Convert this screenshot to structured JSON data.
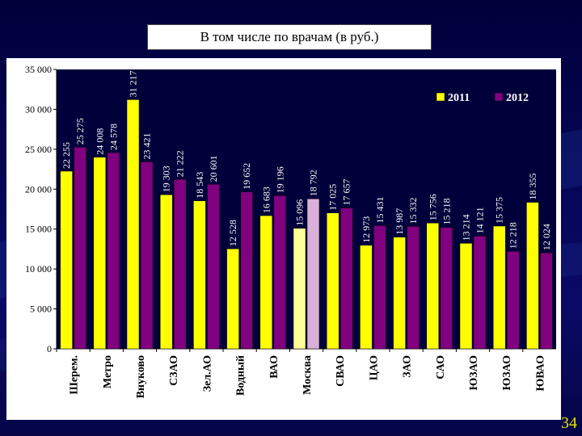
{
  "slide": {
    "title": "В том числе по врачам (в руб.)",
    "page_number": "34"
  },
  "colors": {
    "series_2011": "#ffff00",
    "series_2012": "#800080",
    "moscow_2011": "#ffff99",
    "moscow_2012": "#d8b0d8"
  },
  "chart_data": {
    "type": "bar",
    "categories": [
      "Шерем.",
      "Метро",
      "Внуково",
      "СЗАО",
      "Зел.АО",
      "Водный",
      "ВАО",
      "Москва",
      "СВАО",
      "ЦАО",
      "ЗАО",
      "САО",
      "ЮЗАО",
      "ЮЗАО",
      "ЮВАО"
    ],
    "series": [
      {
        "name": "2011",
        "values": [
          22255,
          24008,
          31217,
          19303,
          18543,
          12528,
          16683,
          15096,
          17025,
          12973,
          13987,
          15756,
          13214,
          15375,
          18355
        ],
        "labels": [
          "22 255",
          "24 008",
          "31 217",
          "19 303",
          "18 543",
          "12 528",
          "16 683",
          "15 096",
          "17 025",
          "12 973",
          "13 987",
          "15 756",
          "13 214",
          "15 375",
          "18 355"
        ]
      },
      {
        "name": "2012",
        "values": [
          25275,
          24578,
          23421,
          21222,
          20601,
          19652,
          19196,
          18792,
          17657,
          15431,
          15332,
          15218,
          14121,
          12218,
          12024
        ],
        "labels": [
          "25 275",
          "24 578",
          "23 421",
          "21 222",
          "20 601",
          "19 652",
          "19 196",
          "18 792",
          "17 657",
          "15 431",
          "15 332",
          "15 218",
          "14 121",
          "12 218",
          "12 024"
        ]
      }
    ],
    "ylim": [
      0,
      35000
    ],
    "yticks": [
      0,
      5000,
      10000,
      15000,
      20000,
      25000,
      30000,
      35000
    ],
    "ytick_labels": [
      "0",
      "5 000",
      "10 000",
      "15 000",
      "20 000",
      "25 000",
      "30 000",
      "35 000"
    ],
    "legend": {
      "placement": "top-right",
      "entries": [
        "2011",
        "2012"
      ]
    },
    "grid": false,
    "highlight_category": "Москва"
  }
}
